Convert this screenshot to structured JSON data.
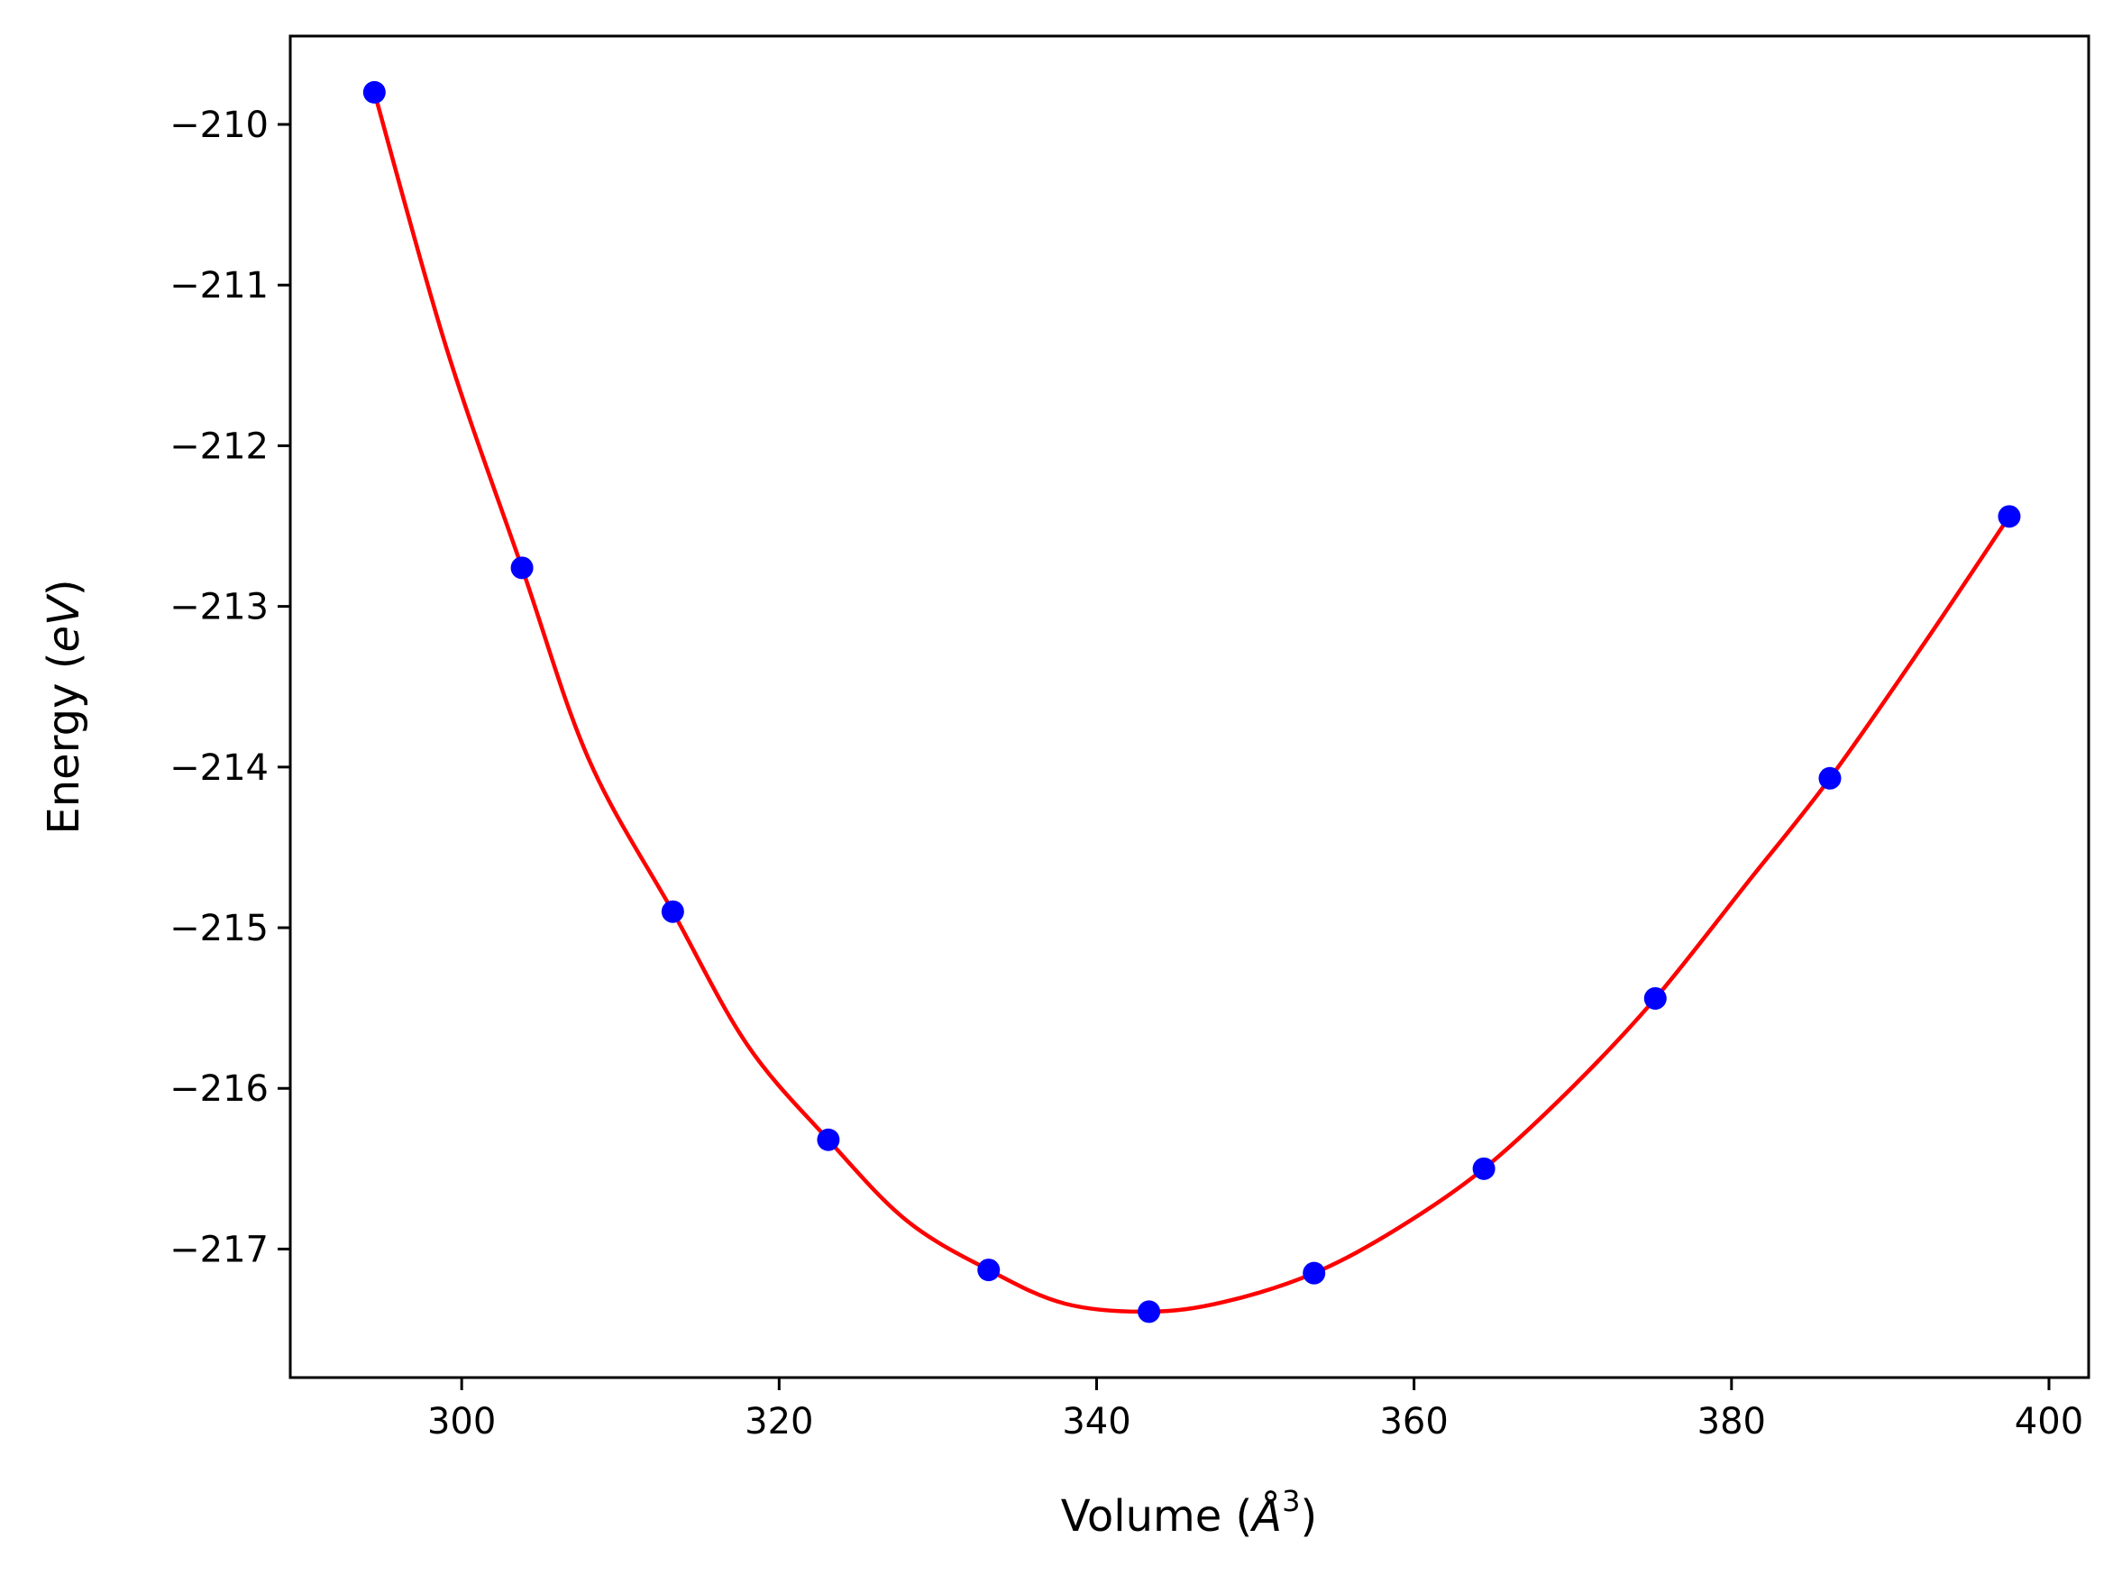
{
  "chart_data": {
    "type": "scatter",
    "title": "",
    "xlabel": "Volume (",
    "xlabel_unit": "Å",
    "xlabel_sup": "3",
    "xlabel_close": ")",
    "ylabel": "Energy (",
    "ylabel_unit": "eV",
    "ylabel_close": ")",
    "xlim": [
      289.2,
      402.5
    ],
    "ylim": [
      -217.8,
      -209.45
    ],
    "xticks": [
      300,
      320,
      340,
      360,
      380,
      400
    ],
    "yticks": [
      -210,
      -211,
      -212,
      -213,
      -214,
      -215,
      -216,
      -217
    ],
    "xtick_labels": [
      "300",
      "320",
      "340",
      "360",
      "380",
      "400"
    ],
    "ytick_labels": [
      "−210",
      "−211",
      "−212",
      "−213",
      "−214",
      "−215",
      "−216",
      "−217"
    ],
    "grid": false,
    "series": [
      {
        "kind": "points",
        "color": "#0000ff",
        "x": [
          294.5,
          303.8,
          313.3,
          323.1,
          333.2,
          343.3,
          353.7,
          364.4,
          375.2,
          386.2,
          397.5
        ],
        "y": [
          -209.8,
          -212.76,
          -214.9,
          -216.32,
          -217.13,
          -217.39,
          -217.15,
          -216.5,
          -215.44,
          -214.07,
          -212.44
        ]
      },
      {
        "kind": "fit",
        "color": "#ff0000",
        "x": [
          294.5,
          299,
          303.8,
          308,
          313.3,
          318,
          323.1,
          328,
          333.2,
          338,
          343.3,
          348,
          353.7,
          359,
          364.4,
          370,
          375.2,
          381,
          386.2,
          392,
          397.5
        ],
        "y": [
          -209.8,
          -211.38,
          -212.76,
          -213.95,
          -214.9,
          -215.73,
          -216.32,
          -216.82,
          -217.13,
          -217.34,
          -217.39,
          -217.33,
          -217.15,
          -216.87,
          -216.5,
          -215.99,
          -215.44,
          -214.72,
          -214.07,
          -213.25,
          -212.44
        ]
      }
    ]
  }
}
